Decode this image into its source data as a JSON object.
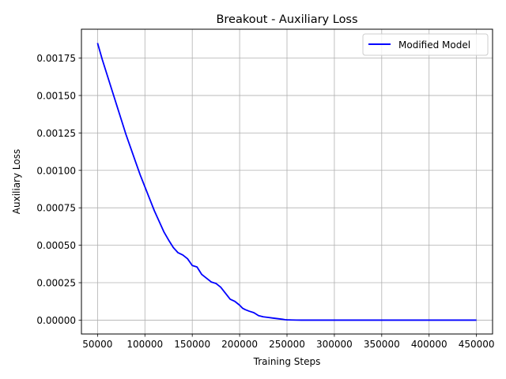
{
  "chart_data": {
    "type": "line",
    "title": "Breakout - Auxiliary Loss",
    "xlabel": "Training Steps",
    "ylabel": "Auxiliary Loss",
    "xlim": [
      33000,
      467000
    ],
    "ylim": [
      -9.25e-05,
      0.0019425
    ],
    "xticks": [
      50000,
      100000,
      150000,
      200000,
      250000,
      300000,
      350000,
      400000,
      450000
    ],
    "xtick_labels": [
      "50000",
      "100000",
      "150000",
      "200000",
      "250000",
      "300000",
      "350000",
      "400000",
      "450000"
    ],
    "yticks": [
      0,
      0.00025,
      0.0005,
      0.00075,
      0.001,
      0.00125,
      0.0015,
      0.00175
    ],
    "ytick_labels": [
      "0.00000",
      "0.00025",
      "0.00050",
      "0.00075",
      "0.00100",
      "0.00125",
      "0.00150",
      "0.00175"
    ],
    "grid": true,
    "legend_position": "top-right",
    "series": [
      {
        "name": "Modified Model",
        "color": "#0000ff",
        "x": [
          50000,
          55000,
          60000,
          65000,
          70000,
          75000,
          80000,
          85000,
          90000,
          95000,
          100000,
          105000,
          110000,
          115000,
          120000,
          125000,
          130000,
          135000,
          140000,
          145000,
          150000,
          155000,
          160000,
          165000,
          170000,
          175000,
          178000,
          180000,
          185000,
          190000,
          195000,
          200000,
          203000,
          206000,
          210000,
          215000,
          220000,
          225000,
          230000,
          235000,
          240000,
          245000,
          248000,
          250000,
          255000,
          260000,
          265000,
          270000,
          275000,
          280000,
          285000,
          290000,
          300000,
          350000,
          400000,
          450000
        ],
        "y": [
          0.00185,
          0.00174,
          0.00164,
          0.00154,
          0.00144,
          0.00134,
          0.00124,
          0.00115,
          0.00106,
          0.00097,
          0.00089,
          0.00081,
          0.00073,
          0.00066,
          0.00059,
          0.000535,
          0.000485,
          0.00045,
          0.000435,
          0.00041,
          0.000365,
          0.000355,
          0.000305,
          0.00028,
          0.000255,
          0.000245,
          0.00023,
          0.00022,
          0.00018,
          0.00014,
          0.000125,
          0.0001,
          8e-05,
          7e-05,
          6e-05,
          5e-05,
          3e-05,
          2.2e-05,
          1.8e-05,
          1.4e-05,
          1e-05,
          6e-06,
          3e-06,
          2e-06,
          1e-06,
          5e-07,
          0,
          0,
          0,
          0,
          0,
          0,
          0,
          0,
          0,
          0
        ]
      }
    ]
  }
}
